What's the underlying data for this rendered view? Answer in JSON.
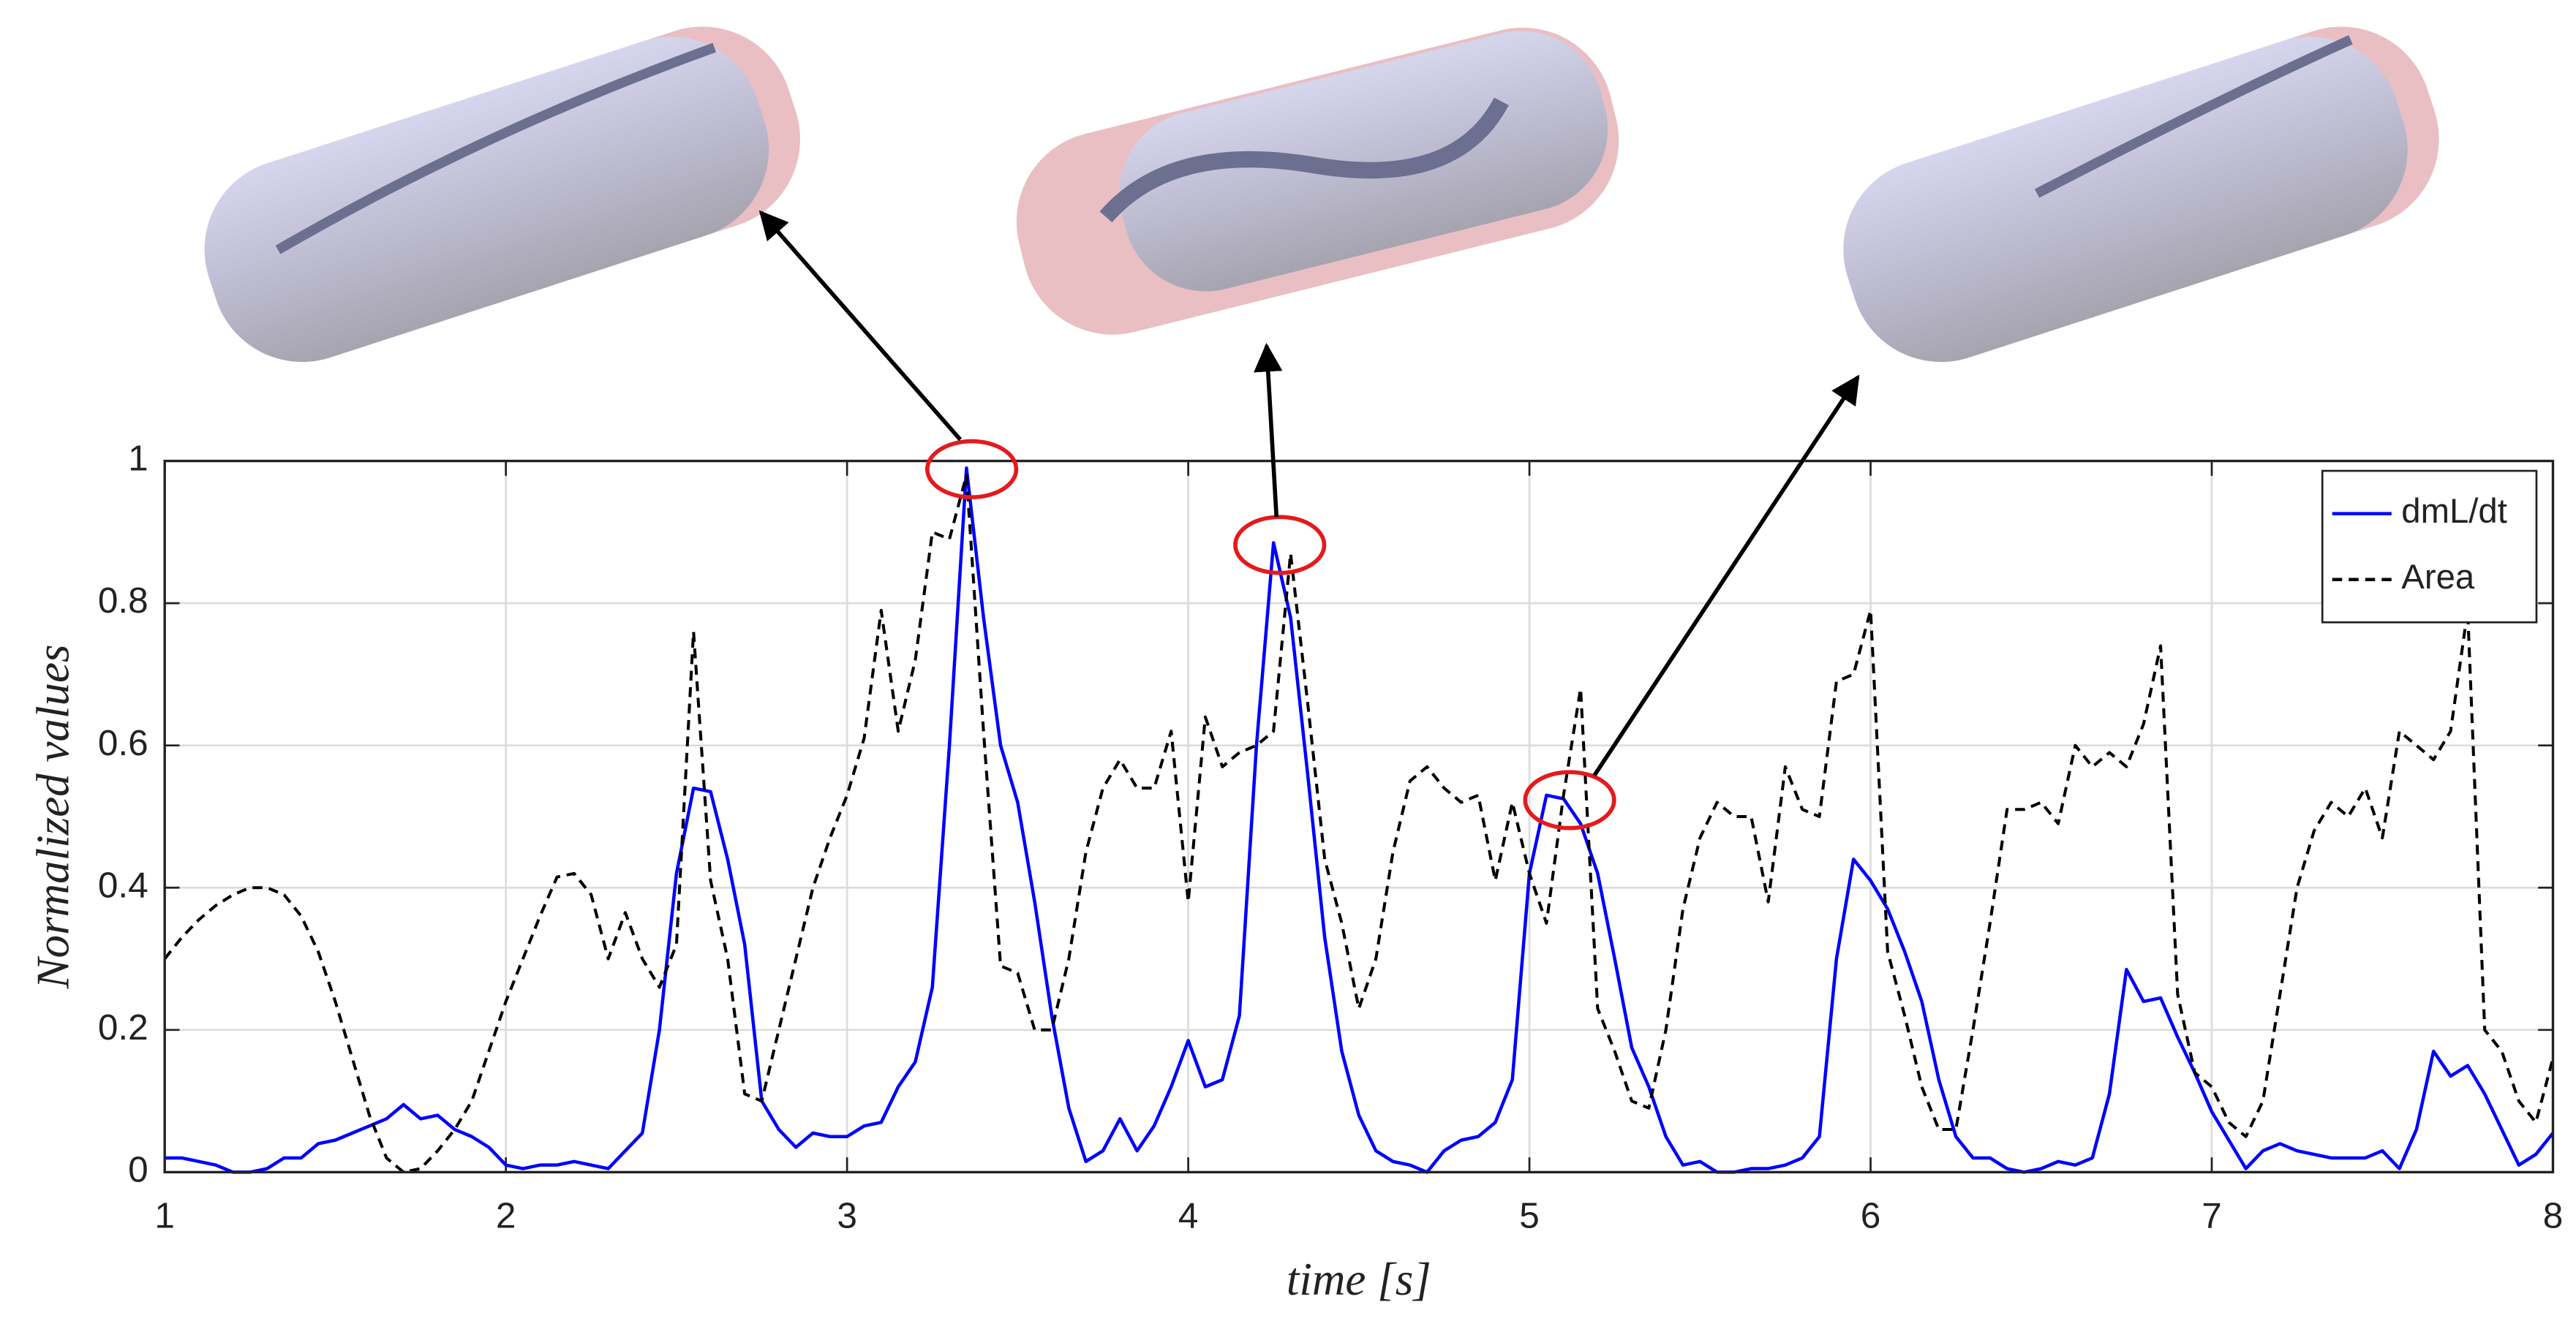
{
  "chart_data": {
    "type": "line",
    "xlabel": "time [s]",
    "ylabel": "Normalized values",
    "x": [
      1,
      1.05,
      1.1,
      1.15,
      1.2,
      1.25,
      1.3,
      1.35,
      1.4,
      1.45,
      1.5,
      1.55,
      1.6,
      1.65,
      1.7,
      1.75,
      1.8,
      1.85,
      1.9,
      1.95,
      2,
      2.05,
      2.1,
      2.15,
      2.2,
      2.25,
      2.3,
      2.35,
      2.4,
      2.45,
      2.5,
      2.55,
      2.6,
      2.65,
      2.7,
      2.75,
      2.8,
      2.85,
      2.9,
      2.95,
      3,
      3.05,
      3.1,
      3.15,
      3.2,
      3.25,
      3.3,
      3.35,
      3.4,
      3.45,
      3.5,
      3.55,
      3.6,
      3.65,
      3.7,
      3.75,
      3.8,
      3.85,
      3.9,
      3.95,
      4,
      4.05,
      4.1,
      4.15,
      4.2,
      4.25,
      4.3,
      4.35,
      4.4,
      4.45,
      4.5,
      4.55,
      4.6,
      4.65,
      4.7,
      4.75,
      4.8,
      4.85,
      4.9,
      4.95,
      5,
      5.05,
      5.1,
      5.15,
      5.2,
      5.25,
      5.3,
      5.35,
      5.4,
      5.45,
      5.5,
      5.55,
      5.6,
      5.65,
      5.7,
      5.75,
      5.8,
      5.85,
      5.9,
      5.95,
      6,
      6.05,
      6.1,
      6.15,
      6.2,
      6.25,
      6.3,
      6.35,
      6.4,
      6.45,
      6.5,
      6.55,
      6.6,
      6.65,
      6.7,
      6.75,
      6.8,
      6.85,
      6.9,
      6.95,
      7,
      7.05,
      7.1,
      7.15,
      7.2,
      7.25,
      7.3,
      7.35,
      7.4,
      7.45,
      7.5,
      7.55,
      7.6,
      7.65,
      7.7,
      7.75,
      7.8,
      7.85,
      7.9,
      7.95,
      8
    ],
    "series": [
      {
        "name": "dmL/dt",
        "color": "#0000ff",
        "linestyle": "solid",
        "values": [
          0.02,
          0.02,
          0.015,
          0.01,
          0,
          0,
          0.005,
          0.02,
          0.02,
          0.04,
          0.045,
          0.055,
          0.065,
          0.075,
          0.095,
          0.075,
          0.08,
          0.06,
          0.05,
          0.035,
          0.01,
          0.005,
          0.01,
          0.01,
          0.015,
          0.01,
          0.005,
          0.03,
          0.055,
          0.2,
          0.42,
          0.54,
          0.535,
          0.44,
          0.32,
          0.1,
          0.06,
          0.035,
          0.055,
          0.05,
          0.05,
          0.065,
          0.07,
          0.12,
          0.155,
          0.26,
          0.6,
          0.99,
          0.78,
          0.6,
          0.52,
          0.38,
          0.22,
          0.09,
          0.015,
          0.03,
          0.075,
          0.03,
          0.065,
          0.12,
          0.185,
          0.12,
          0.13,
          0.22,
          0.6,
          0.885,
          0.78,
          0.56,
          0.33,
          0.17,
          0.08,
          0.03,
          0.015,
          0.01,
          0,
          0.03,
          0.045,
          0.05,
          0.07,
          0.13,
          0.42,
          0.53,
          0.525,
          0.49,
          0.42,
          0.3,
          0.175,
          0.12,
          0.05,
          0.01,
          0.015,
          0,
          0,
          0.005,
          0.005,
          0.01,
          0.02,
          0.05,
          0.3,
          0.44,
          0.41,
          0.37,
          0.31,
          0.24,
          0.13,
          0.05,
          0.02,
          0.02,
          0.005,
          0,
          0.005,
          0.015,
          0.01,
          0.02,
          0.11,
          0.285,
          0.24,
          0.245,
          0.19,
          0.14,
          0.085,
          0.045,
          0.005,
          0.03,
          0.04,
          0.03,
          0.025,
          0.02,
          0.02,
          0.02,
          0.03,
          0.005,
          0.06,
          0.17,
          0.135,
          0.15,
          0.11,
          0.06,
          0.01,
          0.025,
          0.055
        ]
      },
      {
        "name": "Area",
        "color": "#000000",
        "linestyle": "dashed",
        "values": [
          0.3,
          0.33,
          0.355,
          0.375,
          0.39,
          0.4,
          0.4,
          0.39,
          0.36,
          0.31,
          0.24,
          0.16,
          0.08,
          0.02,
          0,
          0.005,
          0.03,
          0.06,
          0.1,
          0.17,
          0.24,
          0.3,
          0.36,
          0.415,
          0.42,
          0.39,
          0.3,
          0.365,
          0.3,
          0.26,
          0.32,
          0.76,
          0.41,
          0.3,
          0.11,
          0.1,
          0.2,
          0.3,
          0.4,
          0.47,
          0.53,
          0.61,
          0.79,
          0.62,
          0.72,
          0.9,
          0.89,
          0.98,
          0.62,
          0.29,
          0.28,
          0.2,
          0.2,
          0.3,
          0.45,
          0.54,
          0.58,
          0.54,
          0.54,
          0.62,
          0.38,
          0.64,
          0.57,
          0.59,
          0.6,
          0.62,
          0.87,
          0.66,
          0.44,
          0.35,
          0.23,
          0.3,
          0.45,
          0.55,
          0.57,
          0.54,
          0.52,
          0.53,
          0.41,
          0.52,
          0.42,
          0.35,
          0.53,
          0.68,
          0.23,
          0.17,
          0.1,
          0.09,
          0.2,
          0.37,
          0.47,
          0.52,
          0.5,
          0.5,
          0.38,
          0.57,
          0.51,
          0.5,
          0.69,
          0.7,
          0.79,
          0.31,
          0.22,
          0.12,
          0.06,
          0.06,
          0.2,
          0.35,
          0.51,
          0.51,
          0.52,
          0.49,
          0.6,
          0.57,
          0.59,
          0.57,
          0.63,
          0.74,
          0.25,
          0.14,
          0.12,
          0.07,
          0.05,
          0.1,
          0.25,
          0.4,
          0.48,
          0.52,
          0.5,
          0.54,
          0.47,
          0.62,
          0.6,
          0.58,
          0.62,
          0.79,
          0.2,
          0.17,
          0.1,
          0.07,
          0.16
        ]
      }
    ],
    "xlim": [
      1,
      8
    ],
    "xticks": [
      1,
      2,
      3,
      4,
      5,
      6,
      7,
      8
    ],
    "ylim": [
      0,
      1
    ],
    "yticks": [
      0,
      0.2,
      0.4,
      0.6,
      0.8,
      1
    ],
    "grid": true,
    "legend": "upper right"
  }
}
